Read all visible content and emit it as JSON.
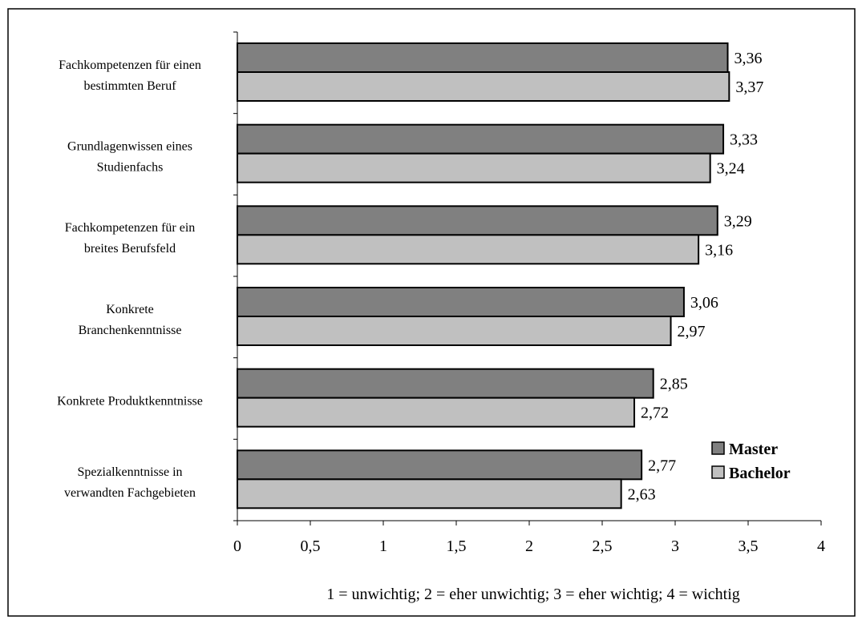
{
  "chart_data": {
    "type": "bar",
    "orientation": "horizontal",
    "categories": [
      [
        "Fachkompetenzen für einen",
        "bestimmten Beruf"
      ],
      [
        "Grundlagenwissen eines",
        "Studienfachs"
      ],
      [
        "Fachkompetenzen für ein",
        "breites Berufsfeld"
      ],
      [
        "Konkrete",
        "Branchenkenntnisse"
      ],
      [
        "Konkrete Produktkenntnisse"
      ],
      [
        "Spezialkenntnisse in",
        "verwandten Fachgebieten"
      ]
    ],
    "series": [
      {
        "name": "Master",
        "color": "#808080",
        "values": [
          3.36,
          3.33,
          3.29,
          3.06,
          2.85,
          2.77
        ],
        "labels": [
          "3,36",
          "3,33",
          "3,29",
          "3,06",
          "2,85",
          "2,77"
        ]
      },
      {
        "name": "Bachelor",
        "color": "#c0c0c0",
        "values": [
          3.37,
          3.24,
          3.16,
          2.97,
          2.72,
          2.63
        ],
        "labels": [
          "3,37",
          "3,24",
          "3,16",
          "2,97",
          "2,72",
          "2,63"
        ]
      }
    ],
    "xlim": [
      0,
      4
    ],
    "xticks": [
      0,
      0.5,
      1,
      1.5,
      2,
      2.5,
      3,
      3.5,
      4
    ],
    "xtick_labels": [
      "0",
      "0,5",
      "1",
      "1,5",
      "2",
      "2,5",
      "3",
      "3,5",
      "4"
    ],
    "xlabel": "1 = unwichtig; 2 = eher unwichtig; 3 = eher wichtig; 4 = wichtig",
    "ylabel": "",
    "title": "",
    "grid": false,
    "legend_position": "bottom-right"
  }
}
